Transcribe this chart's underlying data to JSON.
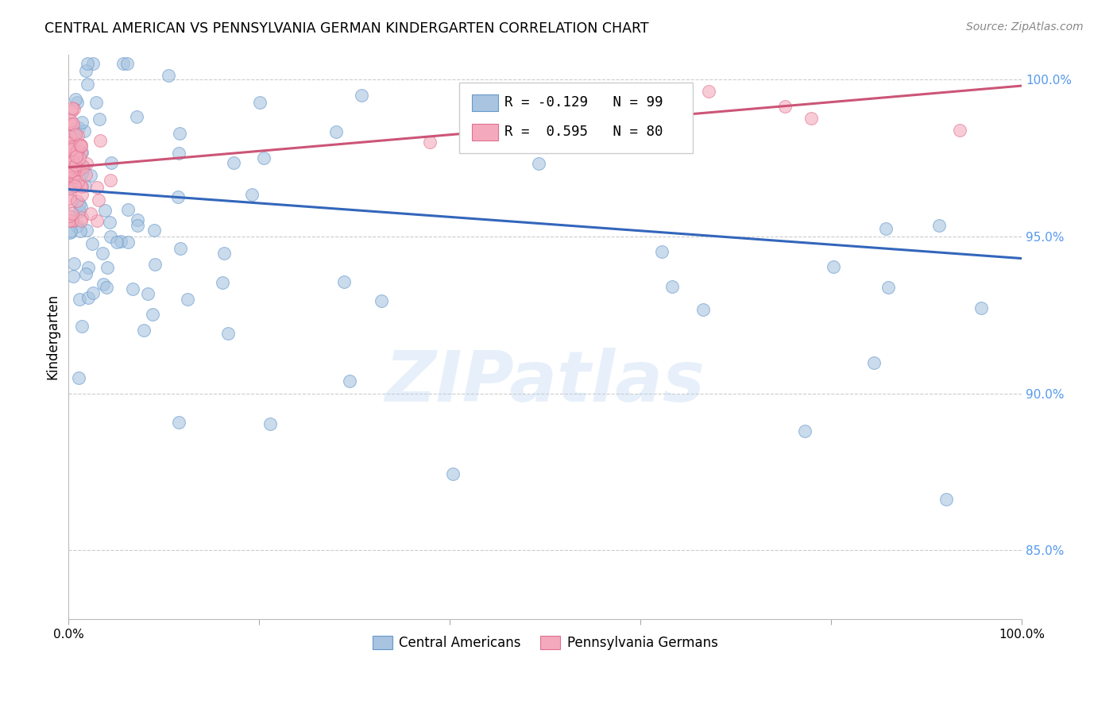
{
  "title": "CENTRAL AMERICAN VS PENNSYLVANIA GERMAN KINDERGARTEN CORRELATION CHART",
  "source": "Source: ZipAtlas.com",
  "ylabel": "Kindergarten",
  "watermark": "ZIPatlas",
  "legend_blue_label": "Central Americans",
  "legend_pink_label": "Pennsylvania Germans",
  "legend_blue_text": "R = -0.129   N = 99",
  "legend_pink_text": "R =  0.595   N = 80",
  "blue_color": "#A8C4E0",
  "pink_color": "#F4AABC",
  "blue_edge_color": "#6699CC",
  "pink_edge_color": "#E07090",
  "blue_line_color": "#3366BB",
  "pink_line_color": "#CC5577",
  "background_color": "#FFFFFF",
  "grid_color": "#CCCCCC",
  "right_axis_color": "#5599EE",
  "xmin": 0.0,
  "xmax": 1.0,
  "ymin": 0.828,
  "ymax": 1.008,
  "blue_trend_x": [
    0.0,
    1.0
  ],
  "blue_trend_y": [
    0.965,
    0.943
  ],
  "pink_trend_x": [
    0.0,
    1.0
  ],
  "pink_trend_y": [
    0.972,
    0.998
  ]
}
